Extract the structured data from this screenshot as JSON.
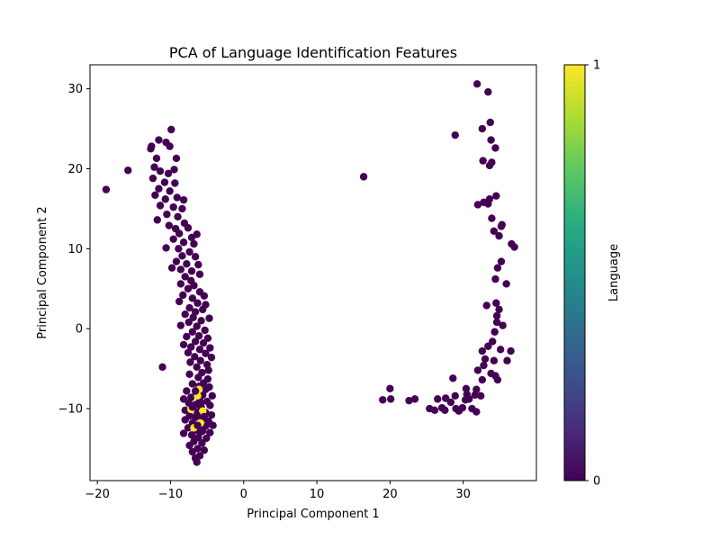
{
  "chart_data": {
    "type": "scatter",
    "title": "PCA of Language Identification Features",
    "xlabel": "Principal Component 1",
    "ylabel": "Principal Component 2",
    "xlim": [
      -21,
      40
    ],
    "ylim": [
      -19,
      33
    ],
    "xticks": [
      -20,
      -10,
      0,
      10,
      20,
      30
    ],
    "yticks": [
      -10,
      0,
      10,
      20,
      30
    ],
    "grid": false,
    "colorbar": {
      "label": "Language",
      "ticks": [
        0,
        1
      ],
      "colormap": "viridis"
    },
    "series": [
      {
        "language": 0,
        "color": "#440154",
        "points": [
          [
            -18.8,
            17.4
          ],
          [
            -15.8,
            19.8
          ],
          [
            -11.1,
            -4.8
          ],
          [
            -9.9,
            24.9
          ],
          [
            -12.7,
            22.5
          ],
          [
            -12.6,
            22.8
          ],
          [
            -11.6,
            23.6
          ],
          [
            -10.6,
            23.3
          ],
          [
            -10.1,
            22.8
          ],
          [
            -11.9,
            21.3
          ],
          [
            -9.2,
            21.3
          ],
          [
            -12.2,
            20.2
          ],
          [
            -11.4,
            19.7
          ],
          [
            -10.3,
            19.4
          ],
          [
            -9.5,
            19.9
          ],
          [
            -12.4,
            18.8
          ],
          [
            -10.8,
            18.3
          ],
          [
            -9.4,
            18.2
          ],
          [
            -11.6,
            17.5
          ],
          [
            -10.1,
            17.2
          ],
          [
            -12.1,
            16.7
          ],
          [
            -10.7,
            16.2
          ],
          [
            -9.1,
            16.4
          ],
          [
            -8.2,
            16.1
          ],
          [
            -11.4,
            15.4
          ],
          [
            -9.6,
            15.2
          ],
          [
            -8.4,
            15.0
          ],
          [
            -10.5,
            14.3
          ],
          [
            -9.0,
            14.0
          ],
          [
            -11.8,
            13.6
          ],
          [
            -8.1,
            13.2
          ],
          [
            -10.2,
            12.9
          ],
          [
            -9.3,
            12.5
          ],
          [
            -7.6,
            12.6
          ],
          [
            -8.8,
            11.9
          ],
          [
            -7.1,
            11.4
          ],
          [
            -6.4,
            11.8
          ],
          [
            -9.6,
            11.2
          ],
          [
            -8.2,
            10.8
          ],
          [
            -6.8,
            10.6
          ],
          [
            -10.6,
            10.1
          ],
          [
            -8.9,
            10.0
          ],
          [
            -7.4,
            9.6
          ],
          [
            -8.4,
            9.1
          ],
          [
            -6.6,
            9.0
          ],
          [
            -9.2,
            8.4
          ],
          [
            -7.8,
            8.1
          ],
          [
            -6.2,
            8.0
          ],
          [
            -8.6,
            7.4
          ],
          [
            -7.1,
            7.2
          ],
          [
            -9.8,
            7.6
          ],
          [
            -6.0,
            6.8
          ],
          [
            -8.0,
            6.5
          ],
          [
            -7.2,
            6.0
          ],
          [
            -6.8,
            5.4
          ],
          [
            -8.6,
            5.6
          ],
          [
            -7.6,
            5.0
          ],
          [
            -6.0,
            4.6
          ],
          [
            -5.4,
            4.1
          ],
          [
            -8.3,
            4.2
          ],
          [
            -7.0,
            3.8
          ],
          [
            -6.3,
            3.2
          ],
          [
            -5.2,
            3.0
          ],
          [
            -8.8,
            3.4
          ],
          [
            -7.4,
            2.6
          ],
          [
            -6.6,
            2.1
          ],
          [
            -5.6,
            2.4
          ],
          [
            -8.0,
            1.8
          ],
          [
            -6.9,
            1.4
          ],
          [
            -5.8,
            1.0
          ],
          [
            -4.7,
            1.3
          ],
          [
            -7.5,
            0.8
          ],
          [
            -6.4,
            0.3
          ],
          [
            -8.6,
            0.4
          ],
          [
            -5.3,
            -0.2
          ],
          [
            -7.0,
            -0.4
          ],
          [
            -6.1,
            -0.9
          ],
          [
            -4.9,
            -1.2
          ],
          [
            -7.8,
            -1.0
          ],
          [
            -6.6,
            -1.6
          ],
          [
            -5.5,
            -1.8
          ],
          [
            -8.2,
            -2.0
          ],
          [
            -7.2,
            -2.3
          ],
          [
            -4.6,
            -2.4
          ],
          [
            -6.0,
            -2.6
          ],
          [
            -7.6,
            -3.0
          ],
          [
            -5.2,
            -3.1
          ],
          [
            -6.7,
            -3.5
          ],
          [
            -4.4,
            -3.6
          ],
          [
            -5.9,
            -4.0
          ],
          [
            -7.3,
            -4.2
          ],
          [
            -5.0,
            -4.5
          ],
          [
            -6.4,
            -4.8
          ],
          [
            -4.8,
            -5.2
          ],
          [
            -5.7,
            -5.5
          ],
          [
            -7.4,
            -5.7
          ],
          [
            -6.2,
            -6.1
          ],
          [
            -4.9,
            -6.3
          ],
          [
            -5.5,
            -6.8
          ],
          [
            -7.0,
            -6.9
          ],
          [
            -6.1,
            -7.2
          ],
          [
            -4.7,
            -7.3
          ],
          [
            -5.2,
            -7.6
          ],
          [
            -7.8,
            -7.8
          ],
          [
            -6.5,
            -8.0
          ],
          [
            -5.6,
            -8.3
          ],
          [
            -4.3,
            -8.4
          ],
          [
            -7.2,
            -8.6
          ],
          [
            -8.2,
            -8.8
          ],
          [
            -6.0,
            -9.0
          ],
          [
            -5.0,
            -9.1
          ],
          [
            -7.5,
            -9.3
          ],
          [
            -6.6,
            -9.5
          ],
          [
            -4.6,
            -9.6
          ],
          [
            -5.8,
            -9.8
          ],
          [
            -7.0,
            -10.0
          ],
          [
            -8.0,
            -10.2
          ],
          [
            -6.2,
            -10.4
          ],
          [
            -5.2,
            -10.5
          ],
          [
            -4.4,
            -10.8
          ],
          [
            -7.4,
            -10.9
          ],
          [
            -6.6,
            -11.1
          ],
          [
            -5.6,
            -11.3
          ],
          [
            -8.0,
            -11.4
          ],
          [
            -4.8,
            -11.6
          ],
          [
            -7.0,
            -11.8
          ],
          [
            -6.0,
            -12.0
          ],
          [
            -5.2,
            -12.2
          ],
          [
            -4.2,
            -12.1
          ],
          [
            -7.6,
            -12.4
          ],
          [
            -6.5,
            -12.7
          ],
          [
            -5.6,
            -12.8
          ],
          [
            -4.6,
            -13.0
          ],
          [
            -8.2,
            -13.1
          ],
          [
            -7.1,
            -13.3
          ],
          [
            -6.2,
            -13.6
          ],
          [
            -5.1,
            -13.7
          ],
          [
            -6.8,
            -14.1
          ],
          [
            -5.7,
            -14.3
          ],
          [
            -7.4,
            -14.6
          ],
          [
            -6.3,
            -15.0
          ],
          [
            -5.4,
            -15.2
          ],
          [
            -7.0,
            -15.4
          ],
          [
            -6.0,
            -15.9
          ],
          [
            -6.6,
            -16.2
          ],
          [
            -6.4,
            -16.7
          ],
          [
            16.4,
            19.0
          ],
          [
            19.0,
            -8.9
          ],
          [
            20.0,
            -7.5
          ],
          [
            20.1,
            -8.8
          ],
          [
            22.6,
            -9.0
          ],
          [
            23.4,
            -8.8
          ],
          [
            25.4,
            -10.0
          ],
          [
            26.1,
            -10.2
          ],
          [
            26.5,
            -8.8
          ],
          [
            27.1,
            -9.9
          ],
          [
            27.5,
            -10.2
          ],
          [
            27.6,
            -8.7
          ],
          [
            28.3,
            -9.2
          ],
          [
            28.6,
            -6.2
          ],
          [
            28.9,
            -8.4
          ],
          [
            29.0,
            -10.0
          ],
          [
            29.4,
            -10.3
          ],
          [
            29.9,
            -9.9
          ],
          [
            30.3,
            -8.9
          ],
          [
            30.5,
            -8.2
          ],
          [
            30.4,
            -7.5
          ],
          [
            30.8,
            -8.8
          ],
          [
            31.2,
            -10.0
          ],
          [
            31.6,
            -8.3
          ],
          [
            31.8,
            -10.4
          ],
          [
            32.0,
            -5.2
          ],
          [
            31.8,
            -7.6
          ],
          [
            32.4,
            -8.4
          ],
          [
            32.6,
            -6.4
          ],
          [
            32.8,
            -4.6
          ],
          [
            33.0,
            -3.8
          ],
          [
            32.6,
            -2.8
          ],
          [
            33.4,
            -2.2
          ],
          [
            33.8,
            -5.6
          ],
          [
            34.0,
            -1.6
          ],
          [
            34.2,
            -4.0
          ],
          [
            34.4,
            -5.9
          ],
          [
            34.3,
            -0.4
          ],
          [
            34.6,
            0.8
          ],
          [
            34.7,
            -6.4
          ],
          [
            34.9,
            2.4
          ],
          [
            35.1,
            -2.6
          ],
          [
            34.6,
            1.6
          ],
          [
            35.4,
            0.4
          ],
          [
            36.0,
            -4.0
          ],
          [
            36.5,
            -2.8
          ],
          [
            33.2,
            2.9
          ],
          [
            34.5,
            3.2
          ],
          [
            34.4,
            6.2
          ],
          [
            35.2,
            8.4
          ],
          [
            34.7,
            7.6
          ],
          [
            35.9,
            5.6
          ],
          [
            36.6,
            10.6
          ],
          [
            37.0,
            10.2
          ],
          [
            34.2,
            12.2
          ],
          [
            34.9,
            11.6
          ],
          [
            35.2,
            12.8
          ],
          [
            33.9,
            13.8
          ],
          [
            35.3,
            13.0
          ],
          [
            32.8,
            15.8
          ],
          [
            32.0,
            15.5
          ],
          [
            33.4,
            15.6
          ],
          [
            33.6,
            16.2
          ],
          [
            34.5,
            16.6
          ],
          [
            32.7,
            21.0
          ],
          [
            33.6,
            20.4
          ],
          [
            33.9,
            20.8
          ],
          [
            34.4,
            22.6
          ],
          [
            33.8,
            23.6
          ],
          [
            32.6,
            25.0
          ],
          [
            33.7,
            25.8
          ],
          [
            28.9,
            24.2
          ],
          [
            33.4,
            29.6
          ],
          [
            31.9,
            30.6
          ]
        ]
      },
      {
        "language": 1,
        "color": "#fde725",
        "points": [
          [
            -7.2,
            -10.1
          ],
          [
            -6.1,
            -7.6
          ],
          [
            -6.3,
            -8.4
          ],
          [
            -5.9,
            -11.8
          ],
          [
            -6.8,
            -12.4
          ],
          [
            -5.6,
            -10.3
          ]
        ]
      }
    ],
    "overlay_language_0": [
      [
        -7.0,
        -9.8
      ],
      [
        -6.4,
        -10.8
      ],
      [
        -5.9,
        -9.4
      ],
      [
        -6.6,
        -7.8
      ],
      [
        -5.8,
        -12.9
      ],
      [
        -6.3,
        -12.1
      ],
      [
        -5.4,
        -11.0
      ]
    ]
  }
}
